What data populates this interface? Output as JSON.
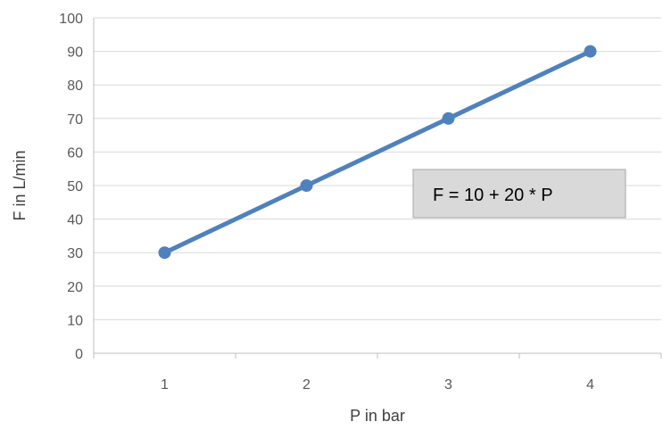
{
  "chart_data": {
    "type": "line",
    "title": "",
    "xlabel": "P in bar",
    "ylabel": "F in L/min",
    "categories": [
      "1",
      "2",
      "3",
      "4"
    ],
    "x": [
      1,
      2,
      3,
      4
    ],
    "series": [
      {
        "values": [
          30,
          50,
          70,
          90
        ],
        "color": "#4f81bd"
      }
    ],
    "ylim": [
      0,
      100
    ],
    "yticks": [
      "0",
      "10",
      "20",
      "30",
      "40",
      "50",
      "60",
      "70",
      "80",
      "90",
      "100"
    ],
    "grid": "horizontal",
    "legend": "none",
    "annotation": {
      "text": "F = 10 + 20 * P",
      "background": "#d9d9d9",
      "border": "#a6a6a6"
    },
    "colors": {
      "gridline": "#d9d9d9",
      "axis": "#bfbfbf",
      "tick_text": "#595959",
      "axis_title_text": "#404040"
    }
  }
}
